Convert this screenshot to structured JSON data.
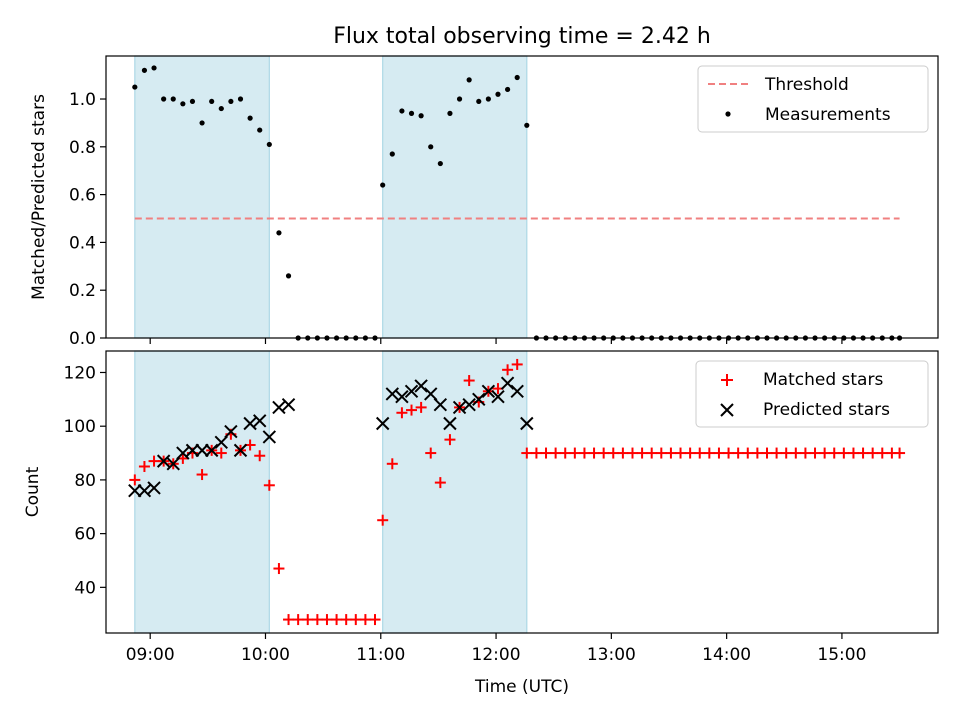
{
  "title": "Flux total observing time = 2.42 h",
  "chart_data": [
    {
      "type": "scatter",
      "panel": "top",
      "title": "Flux total observing time = 2.42 h",
      "ylabel": "Matched/Predicted stars",
      "xlabel": "",
      "ylim": [
        0,
        1.18
      ],
      "yticks": [
        "0.0",
        "0.2",
        "0.4",
        "0.6",
        "0.8",
        "1.0"
      ],
      "shaded_intervals": [
        [
          "08:52",
          "10:02"
        ],
        [
          "11:01",
          "12:16"
        ]
      ],
      "threshold": {
        "name": "Threshold",
        "y": 0.5,
        "x_start": "08:52",
        "x_end": "15:30",
        "color": "#f08080",
        "style": "dashed"
      },
      "legend": {
        "position": "upper right",
        "entries": [
          "Threshold",
          "Measurements"
        ]
      },
      "series": [
        {
          "name": "Measurements",
          "color": "#000000",
          "marker": "dot",
          "points": [
            [
              "08:52",
              1.05
            ],
            [
              "08:57",
              1.12
            ],
            [
              "09:02",
              1.13
            ],
            [
              "09:07",
              1.0
            ],
            [
              "09:12",
              1.0
            ],
            [
              "09:17",
              0.98
            ],
            [
              "09:22",
              0.99
            ],
            [
              "09:27",
              0.9
            ],
            [
              "09:32",
              0.99
            ],
            [
              "09:37",
              0.96
            ],
            [
              "09:42",
              0.99
            ],
            [
              "09:47",
              1.0
            ],
            [
              "09:52",
              0.92
            ],
            [
              "09:57",
              0.87
            ],
            [
              "10:02",
              0.81
            ],
            [
              "10:07",
              0.44
            ],
            [
              "10:12",
              0.26
            ],
            [
              "10:17",
              0.0
            ],
            [
              "10:22",
              0.0
            ],
            [
              "10:27",
              0.0
            ],
            [
              "10:32",
              0.0
            ],
            [
              "10:37",
              0.0
            ],
            [
              "10:42",
              0.0
            ],
            [
              "10:47",
              0.0
            ],
            [
              "10:52",
              0.0
            ],
            [
              "10:57",
              0.0
            ],
            [
              "11:01",
              0.64
            ],
            [
              "11:06",
              0.77
            ],
            [
              "11:11",
              0.95
            ],
            [
              "11:16",
              0.94
            ],
            [
              "11:21",
              0.93
            ],
            [
              "11:26",
              0.8
            ],
            [
              "11:31",
              0.73
            ],
            [
              "11:36",
              0.94
            ],
            [
              "11:41",
              1.0
            ],
            [
              "11:46",
              1.08
            ],
            [
              "11:51",
              0.99
            ],
            [
              "11:56",
              1.0
            ],
            [
              "12:01",
              1.02
            ],
            [
              "12:06",
              1.04
            ],
            [
              "12:11",
              1.09
            ],
            [
              "12:16",
              0.89
            ],
            [
              "12:21",
              0.0
            ],
            [
              "12:26",
              0.0
            ],
            [
              "12:31",
              0.0
            ],
            [
              "12:36",
              0.0
            ],
            [
              "12:41",
              0.0
            ],
            [
              "12:46",
              0.0
            ],
            [
              "12:51",
              0.0
            ],
            [
              "12:56",
              0.0
            ],
            [
              "13:01",
              0.0
            ],
            [
              "13:06",
              0.0
            ],
            [
              "13:11",
              0.0
            ],
            [
              "13:16",
              0.0
            ],
            [
              "13:21",
              0.0
            ],
            [
              "13:26",
              0.0
            ],
            [
              "13:31",
              0.0
            ],
            [
              "13:36",
              0.0
            ],
            [
              "13:41",
              0.0
            ],
            [
              "13:46",
              0.0
            ],
            [
              "13:51",
              0.0
            ],
            [
              "13:56",
              0.0
            ],
            [
              "14:01",
              0.0
            ],
            [
              "14:06",
              0.0
            ],
            [
              "14:11",
              0.0
            ],
            [
              "14:16",
              0.0
            ],
            [
              "14:21",
              0.0
            ],
            [
              "14:26",
              0.0
            ],
            [
              "14:31",
              0.0
            ],
            [
              "14:36",
              0.0
            ],
            [
              "14:41",
              0.0
            ],
            [
              "14:46",
              0.0
            ],
            [
              "14:51",
              0.0
            ],
            [
              "14:56",
              0.0
            ],
            [
              "15:01",
              0.0
            ],
            [
              "15:06",
              0.0
            ],
            [
              "15:11",
              0.0
            ],
            [
              "15:16",
              0.0
            ],
            [
              "15:21",
              0.0
            ],
            [
              "15:26",
              0.0
            ],
            [
              "15:30",
              0.0
            ]
          ]
        }
      ]
    },
    {
      "type": "scatter",
      "panel": "bottom",
      "title": "",
      "ylabel": "Count",
      "xlabel": "Time (UTC)",
      "ylim": [
        23,
        128
      ],
      "yticks": [
        "40",
        "60",
        "80",
        "100",
        "120"
      ],
      "xticks": [
        "09:00",
        "10:00",
        "11:00",
        "12:00",
        "13:00",
        "14:00",
        "15:00"
      ],
      "xlim": [
        "08:37",
        "15:50"
      ],
      "shaded_intervals": [
        [
          "08:52",
          "10:02"
        ],
        [
          "11:01",
          "12:16"
        ]
      ],
      "legend": {
        "position": "upper right",
        "entries": [
          "Matched stars",
          "Predicted stars"
        ]
      },
      "series": [
        {
          "name": "Matched stars",
          "color": "#ff0000",
          "marker": "plus",
          "points": [
            [
              "08:52",
              80
            ],
            [
              "08:57",
              85
            ],
            [
              "09:02",
              87
            ],
            [
              "09:07",
              87
            ],
            [
              "09:12",
              86
            ],
            [
              "09:17",
              88
            ],
            [
              "09:22",
              90
            ],
            [
              "09:27",
              82
            ],
            [
              "09:32",
              91
            ],
            [
              "09:37",
              90
            ],
            [
              "09:42",
              97
            ],
            [
              "09:47",
              91
            ],
            [
              "09:52",
              93
            ],
            [
              "09:57",
              89
            ],
            [
              "10:02",
              78
            ],
            [
              "10:07",
              47
            ],
            [
              "10:12",
              28
            ],
            [
              "10:17",
              28
            ],
            [
              "10:22",
              28
            ],
            [
              "10:27",
              28
            ],
            [
              "10:32",
              28
            ],
            [
              "10:37",
              28
            ],
            [
              "10:42",
              28
            ],
            [
              "10:47",
              28
            ],
            [
              "10:52",
              28
            ],
            [
              "10:57",
              28
            ],
            [
              "11:01",
              65
            ],
            [
              "11:06",
              86
            ],
            [
              "11:11",
              105
            ],
            [
              "11:16",
              106
            ],
            [
              "11:21",
              107
            ],
            [
              "11:26",
              90
            ],
            [
              "11:31",
              79
            ],
            [
              "11:36",
              95
            ],
            [
              "11:41",
              107
            ],
            [
              "11:46",
              117
            ],
            [
              "11:51",
              109
            ],
            [
              "11:56",
              113
            ],
            [
              "12:01",
              114
            ],
            [
              "12:06",
              121
            ],
            [
              "12:11",
              123
            ],
            [
              "12:16",
              90
            ],
            [
              "12:21",
              90
            ],
            [
              "12:26",
              90
            ],
            [
              "12:31",
              90
            ],
            [
              "12:36",
              90
            ],
            [
              "12:41",
              90
            ],
            [
              "12:46",
              90
            ],
            [
              "12:51",
              90
            ],
            [
              "12:56",
              90
            ],
            [
              "13:01",
              90
            ],
            [
              "13:06",
              90
            ],
            [
              "13:11",
              90
            ],
            [
              "13:16",
              90
            ],
            [
              "13:21",
              90
            ],
            [
              "13:26",
              90
            ],
            [
              "13:31",
              90
            ],
            [
              "13:36",
              90
            ],
            [
              "13:41",
              90
            ],
            [
              "13:46",
              90
            ],
            [
              "13:51",
              90
            ],
            [
              "13:56",
              90
            ],
            [
              "14:01",
              90
            ],
            [
              "14:06",
              90
            ],
            [
              "14:11",
              90
            ],
            [
              "14:16",
              90
            ],
            [
              "14:21",
              90
            ],
            [
              "14:26",
              90
            ],
            [
              "14:31",
              90
            ],
            [
              "14:36",
              90
            ],
            [
              "14:41",
              90
            ],
            [
              "14:46",
              90
            ],
            [
              "14:51",
              90
            ],
            [
              "14:56",
              90
            ],
            [
              "15:01",
              90
            ],
            [
              "15:06",
              90
            ],
            [
              "15:11",
              90
            ],
            [
              "15:16",
              90
            ],
            [
              "15:21",
              90
            ],
            [
              "15:26",
              90
            ],
            [
              "15:30",
              90
            ]
          ]
        },
        {
          "name": "Predicted stars",
          "color": "#000000",
          "marker": "x",
          "points": [
            [
              "08:52",
              76
            ],
            [
              "08:57",
              76
            ],
            [
              "09:02",
              77
            ],
            [
              "09:07",
              87
            ],
            [
              "09:12",
              86
            ],
            [
              "09:17",
              90
            ],
            [
              "09:22",
              91
            ],
            [
              "09:27",
              91
            ],
            [
              "09:32",
              91
            ],
            [
              "09:37",
              94
            ],
            [
              "09:42",
              98
            ],
            [
              "09:47",
              91
            ],
            [
              "09:52",
              101
            ],
            [
              "09:57",
              102
            ],
            [
              "10:02",
              96
            ],
            [
              "10:07",
              107
            ],
            [
              "10:12",
              108
            ],
            [
              "11:01",
              101
            ],
            [
              "11:06",
              112
            ],
            [
              "11:11",
              111
            ],
            [
              "11:16",
              113
            ],
            [
              "11:21",
              115
            ],
            [
              "11:26",
              112
            ],
            [
              "11:31",
              108
            ],
            [
              "11:36",
              101
            ],
            [
              "11:41",
              107
            ],
            [
              "11:46",
              108
            ],
            [
              "11:51",
              110
            ],
            [
              "11:56",
              113
            ],
            [
              "12:01",
              111
            ],
            [
              "12:06",
              116
            ],
            [
              "12:11",
              113
            ],
            [
              "12:16",
              101
            ]
          ]
        }
      ]
    }
  ]
}
